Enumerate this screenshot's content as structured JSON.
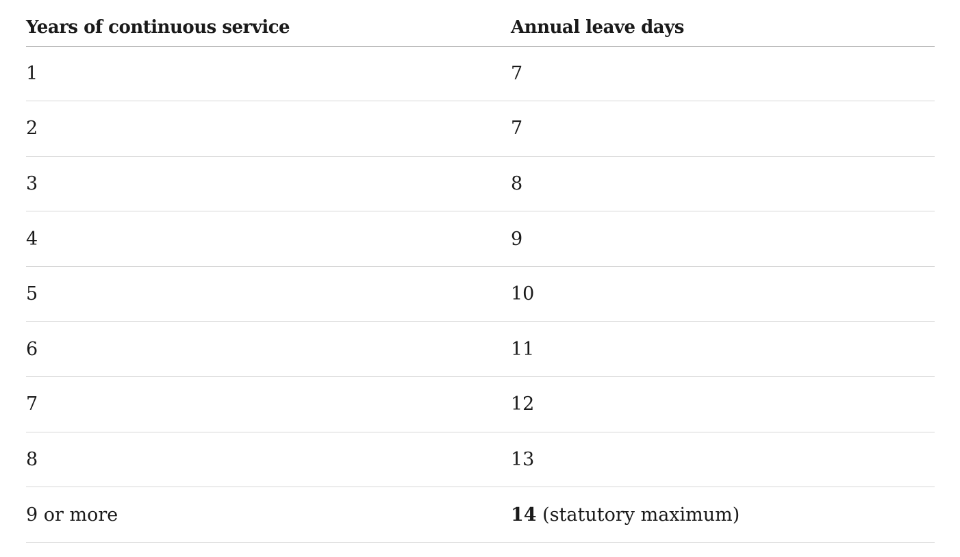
{
  "table": {
    "headers": {
      "years": "Years of continuous service",
      "leave": "Annual leave days"
    },
    "rows": [
      {
        "years": "1",
        "leave": "7",
        "leave_note": ""
      },
      {
        "years": "2",
        "leave": "7",
        "leave_note": ""
      },
      {
        "years": "3",
        "leave": "8",
        "leave_note": ""
      },
      {
        "years": "4",
        "leave": "9",
        "leave_note": ""
      },
      {
        "years": "5",
        "leave": "10",
        "leave_note": ""
      },
      {
        "years": "6",
        "leave": "11",
        "leave_note": ""
      },
      {
        "years": "7",
        "leave": "12",
        "leave_note": ""
      },
      {
        "years": "8",
        "leave": "13",
        "leave_note": ""
      },
      {
        "years": "9 or more",
        "leave": "14",
        "leave_note": " (statutory maximum)"
      }
    ]
  }
}
